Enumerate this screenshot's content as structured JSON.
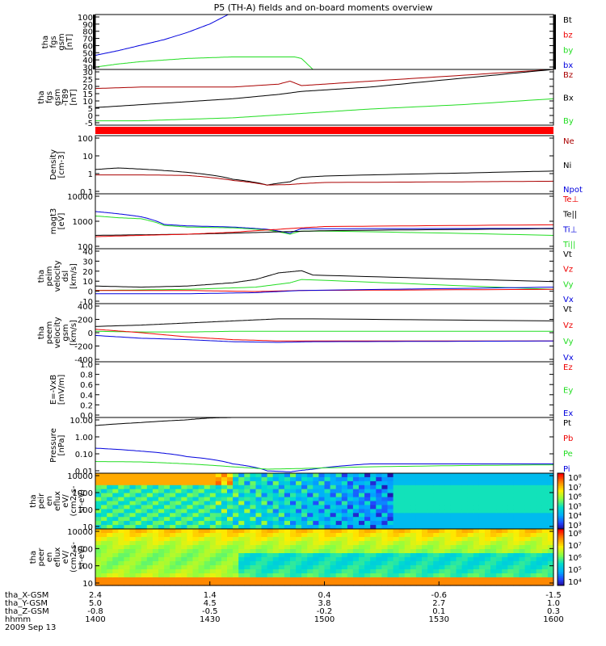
{
  "title": "P5 (TH-A) fields and on-board moments overview",
  "colors": {
    "black": "#000000",
    "red": "#ee0000",
    "darkred": "#aa0000",
    "green": "#22dd22",
    "blue": "#0000dd",
    "purple": "#880088"
  },
  "chart_data": [
    {
      "id": "p1",
      "type": "line",
      "ylabel": [
        "tha",
        "fgs",
        "gsm",
        "[nT]"
      ],
      "yticks": [
        "100",
        "90",
        "80",
        "70",
        "60",
        "50",
        "40",
        "30"
      ],
      "legend": [
        {
          "name": "Bt",
          "color": "#000000"
        },
        {
          "name": "bz",
          "color": "#ee0000"
        },
        {
          "name": "by",
          "color": "#22dd22"
        },
        {
          "name": "bx",
          "color": "#0000dd"
        }
      ],
      "ylim": [
        30,
        100
      ],
      "series": [
        {
          "name": "bx",
          "color": "#0000dd",
          "x": [
            1400,
            1410,
            1420,
            1430,
            1440,
            1450,
            1458
          ],
          "y": [
            48,
            54,
            61,
            68,
            77,
            88,
            100
          ]
        },
        {
          "name": "by",
          "color": "#22dd22",
          "x": [
            1400,
            1410,
            1420,
            1430,
            1440,
            1450,
            1460,
            1475,
            1487,
            1490,
            1495
          ],
          "y": [
            33,
            37,
            40,
            42,
            44,
            45,
            46,
            46,
            46,
            44,
            30
          ]
        }
      ]
    },
    {
      "id": "p2",
      "type": "line",
      "ylabel": [
        "tha",
        "fgs",
        "gsm",
        "-T89",
        "[nT]"
      ],
      "yticks": [
        "30",
        "25",
        "20",
        "15",
        "10",
        "5",
        "0",
        "-5"
      ],
      "legend": [
        {
          "name": "Bz",
          "color": "#aa0000"
        },
        {
          "name": "Bx",
          "color": "#000000"
        },
        {
          "name": "By",
          "color": "#22dd22"
        }
      ],
      "ylim": [
        -8,
        30
      ],
      "series": [
        {
          "name": "Bz",
          "color": "#aa0000",
          "x": [
            1400,
            1420,
            1440,
            1460,
            1480,
            1485,
            1490,
            1500,
            1520,
            1560,
            1600
          ],
          "y": [
            17,
            18,
            18,
            18,
            20,
            22,
            19,
            20,
            22,
            26,
            30
          ]
        },
        {
          "name": "Bx",
          "color": "#000000",
          "x": [
            1400,
            1420,
            1440,
            1460,
            1480,
            1490,
            1500,
            1520,
            1560,
            1600
          ],
          "y": [
            4,
            6,
            8,
            10,
            13,
            15,
            16,
            18,
            24,
            30
          ]
        },
        {
          "name": "By",
          "color": "#22dd22",
          "x": [
            1400,
            1420,
            1440,
            1460,
            1480,
            1490,
            1500,
            1520,
            1560,
            1600
          ],
          "y": [
            -5,
            -5,
            -4,
            -3,
            -1,
            0,
            1,
            3,
            6,
            10
          ]
        }
      ]
    },
    {
      "id": "p3",
      "type": "line",
      "ylabel": [
        "Density",
        "[cm-3]"
      ],
      "yticks": [
        "100",
        "10",
        "1",
        "0.1"
      ],
      "legend": [
        {
          "name": "Ne",
          "color": "#aa0000"
        },
        {
          "name": "Ni",
          "color": "#000000"
        },
        {
          "name": "Npot",
          "color": "#0000dd"
        }
      ],
      "log": true,
      "ylim": [
        0.03,
        300
      ],
      "series": [
        {
          "name": "Ni",
          "color": "#000000",
          "x": [
            1400,
            1410,
            1420,
            1440,
            1460,
            1475,
            1485,
            1490,
            1500,
            1560,
            1600
          ],
          "y": [
            1.4,
            1.8,
            1.5,
            0.9,
            0.3,
            0.12,
            0.2,
            0.4,
            0.5,
            0.8,
            1.1
          ]
        },
        {
          "name": "Ne",
          "color": "#aa0000",
          "x": [
            1400,
            1420,
            1440,
            1460,
            1475,
            1485,
            1490,
            1500,
            1560,
            1600
          ],
          "y": [
            0.6,
            0.6,
            0.55,
            0.25,
            0.12,
            0.13,
            0.15,
            0.18,
            0.2,
            0.22
          ]
        }
      ]
    },
    {
      "id": "p4",
      "type": "line",
      "ylabel": [
        "magt3",
        "[eV]"
      ],
      "yticks": [
        "10000",
        "1000",
        "100"
      ],
      "legend": [
        {
          "name": "Te⊥",
          "color": "#ee0000"
        },
        {
          "name": "Te||",
          "color": "#000000"
        },
        {
          "name": "Ti⊥",
          "color": "#0000dd"
        },
        {
          "name": "Ti||",
          "color": "#22dd22"
        }
      ],
      "log": true,
      "ylim": [
        40,
        12000
      ],
      "series": [
        {
          "name": "Ti⊥",
          "color": "#0000dd",
          "x": [
            1400,
            1410,
            1420,
            1430,
            1440,
            1460,
            1475,
            1485,
            1490,
            1500,
            1600
          ],
          "y": [
            1900,
            1500,
            1100,
            500,
            430,
            380,
            300,
            200,
            320,
            320,
            330
          ]
        },
        {
          "name": "Ti||",
          "color": "#22dd22",
          "x": [
            1400,
            1410,
            1420,
            1430,
            1440,
            1460,
            1475,
            1485,
            1490,
            1500,
            1600
          ],
          "y": [
            1200,
            1000,
            900,
            450,
            380,
            350,
            280,
            180,
            250,
            250,
            160
          ]
        },
        {
          "name": "Te||",
          "color": "#000000",
          "x": [
            1400,
            1420,
            1440,
            1460,
            1480,
            1500,
            1600
          ],
          "y": [
            160,
            170,
            180,
            200,
            230,
            260,
            320
          ]
        },
        {
          "name": "Te⊥",
          "color": "#ee0000",
          "x": [
            1400,
            1420,
            1440,
            1460,
            1480,
            1500,
            1600
          ],
          "y": [
            140,
            160,
            180,
            220,
            300,
            400,
            480
          ]
        }
      ]
    },
    {
      "id": "p5",
      "type": "line",
      "ylabel": [
        "tha",
        "peim",
        "velocity",
        "dsl",
        "[km/s]"
      ],
      "yticks": [
        "40",
        "30",
        "20",
        "10",
        "0",
        "-10"
      ],
      "legend": [
        {
          "name": "Vt",
          "color": "#000000"
        },
        {
          "name": "Vz",
          "color": "#ee0000"
        },
        {
          "name": "Vy",
          "color": "#22dd22"
        },
        {
          "name": "Vx",
          "color": "#0000dd"
        }
      ],
      "ylim": [
        -10,
        40
      ],
      "series": [
        {
          "name": "Vt",
          "color": "#000000",
          "x": [
            1400,
            1420,
            1440,
            1460,
            1470,
            1480,
            1490,
            1495,
            1600
          ],
          "y": [
            6,
            5,
            6,
            9,
            12,
            18,
            20,
            16,
            10
          ]
        },
        {
          "name": "Vy",
          "color": "#22dd22",
          "x": [
            1400,
            1440,
            1470,
            1485,
            1490,
            1600
          ],
          "y": [
            2,
            3,
            5,
            9,
            12,
            3
          ]
        },
        {
          "name": "Vz",
          "color": "#ee0000",
          "x": [
            1400,
            1440,
            1470,
            1490,
            1600
          ],
          "y": [
            2,
            2,
            1,
            2,
            3
          ]
        },
        {
          "name": "Vx",
          "color": "#0000dd",
          "x": [
            1400,
            1440,
            1470,
            1490,
            1600
          ],
          "y": [
            -1,
            -1,
            0,
            2,
            5
          ]
        }
      ]
    },
    {
      "id": "p6",
      "type": "line",
      "ylabel": [
        "tha",
        "peem",
        "velocity",
        "gsm",
        "[km/s]"
      ],
      "yticks": [
        "400",
        "200",
        "0",
        "-200",
        "-400"
      ],
      "legend": [
        {
          "name": "Vt",
          "color": "#000000"
        },
        {
          "name": "Vz",
          "color": "#ee0000"
        },
        {
          "name": "Vy",
          "color": "#22dd22"
        },
        {
          "name": "Vx",
          "color": "#0000dd"
        }
      ],
      "ylim": [
        -420,
        420
      ],
      "series": [
        {
          "name": "Vt",
          "color": "#000000",
          "x": [
            1400,
            1420,
            1440,
            1460,
            1480,
            1495,
            1600
          ],
          "y": [
            90,
            110,
            140,
            170,
            200,
            200,
            170
          ]
        },
        {
          "name": "Vy",
          "color": "#22dd22",
          "x": [
            1400,
            1420,
            1440,
            1460,
            1480,
            1495,
            1600
          ],
          "y": [
            20,
            10,
            10,
            20,
            20,
            20,
            20
          ]
        },
        {
          "name": "Vz",
          "color": "#ee0000",
          "x": [
            1400,
            1420,
            1440,
            1460,
            1480,
            1495,
            1600
          ],
          "y": [
            50,
            0,
            -60,
            -100,
            -120,
            -120,
            -120
          ]
        },
        {
          "name": "Vx",
          "color": "#0000dd",
          "x": [
            1400,
            1420,
            1440,
            1460,
            1480,
            1495,
            1600
          ],
          "y": [
            -40,
            -80,
            -100,
            -130,
            -140,
            -130,
            -120
          ]
        }
      ]
    },
    {
      "id": "p7",
      "type": "line",
      "ylabel": [
        "E=-VxB",
        "[mV/m]"
      ],
      "yticks": [
        "1.0",
        "0.8",
        "0.6",
        "0.4",
        "0.2",
        "0.0"
      ],
      "legend": [
        {
          "name": "Ez",
          "color": "#ee0000"
        },
        {
          "name": "Ey",
          "color": "#22dd22"
        },
        {
          "name": "Ex",
          "color": "#0000dd"
        }
      ],
      "ylim": [
        0,
        1
      ],
      "series": []
    },
    {
      "id": "p8",
      "type": "line",
      "ylabel": [
        "Pressure",
        "[nPa]"
      ],
      "yticks": [
        "10.00",
        "1.00",
        "0.10",
        "0.01"
      ],
      "legend": [
        {
          "name": "Pt",
          "color": "#000000"
        },
        {
          "name": "Pb",
          "color": "#ee0000"
        },
        {
          "name": "Pe",
          "color": "#22dd22"
        },
        {
          "name": "Pi",
          "color": "#0000dd"
        }
      ],
      "log": true,
      "ylim": [
        0.004,
        60
      ],
      "series": [
        {
          "name": "Pt",
          "color": "#000000",
          "x": [
            1400,
            1420,
            1440,
            1450,
            1460
          ],
          "y": [
            15,
            25,
            40,
            55,
            60
          ]
        },
        {
          "name": "Pi",
          "color": "#0000dd",
          "x": [
            1400,
            1420,
            1440,
            1460,
            1475,
            1485,
            1495,
            1520,
            1560,
            1600
          ],
          "y": [
            0.3,
            0.18,
            0.07,
            0.02,
            0.006,
            0.005,
            0.008,
            0.02,
            0.02,
            0.02
          ]
        },
        {
          "name": "Pe",
          "color": "#22dd22",
          "x": [
            1400,
            1420,
            1440,
            1460,
            1475,
            1490,
            1520,
            1560,
            1600
          ],
          "y": [
            0.03,
            0.028,
            0.02,
            0.012,
            0.008,
            0.009,
            0.012,
            0.015,
            0.017
          ]
        }
      ]
    },
    {
      "id": "p9",
      "type": "heatmap",
      "ylabel": [
        "tha",
        "peir",
        "en",
        "eflux",
        "eV/",
        "(cm2-s-",
        "sr-eV)"
      ],
      "yticks": [
        "10000",
        "1000",
        "100",
        "10"
      ],
      "colorbar": [
        "10⁸",
        "10⁷",
        "10⁶",
        "10⁵",
        "10⁴",
        "10³"
      ]
    },
    {
      "id": "p10",
      "type": "heatmap",
      "ylabel": [
        "tha",
        "peer",
        "en",
        "eflux",
        "eV/",
        "(cm2-s-",
        "sr-eV)"
      ],
      "yticks": [
        "10000",
        "1000",
        "100",
        "10"
      ],
      "colorbar": [
        "10⁸",
        "10⁷",
        "10⁶",
        "10⁵",
        "10⁴"
      ]
    }
  ],
  "xaxis": {
    "rows": [
      {
        "label": "tha_X-GSM",
        "values": [
          "2.4",
          "1.4",
          "0.4",
          "-0.6",
          "-1.5"
        ]
      },
      {
        "label": "tha_Y-GSM",
        "values": [
          "5.0",
          "4.5",
          "3.8",
          "2.7",
          "1.0"
        ]
      },
      {
        "label": "tha_Z-GSM",
        "values": [
          "-0.8",
          "-0.5",
          "-0.2",
          "0.1",
          "0.3"
        ]
      },
      {
        "label": "hhmm",
        "values": [
          "1400",
          "1430",
          "1500",
          "1530",
          "1600"
        ]
      }
    ],
    "date": "2009 Sep 13",
    "xlim": [
      1400,
      1600
    ]
  }
}
